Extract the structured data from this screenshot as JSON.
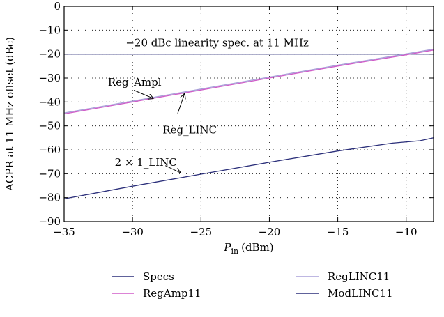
{
  "chart_data": {
    "type": "line",
    "title": "",
    "xlabel": {
      "main": "P",
      "sub": "in",
      "unit": "(dBm)"
    },
    "ylabel": "ACPR at 11 MHz offset (dBc)",
    "xlim": [
      -35,
      -8
    ],
    "ylim": [
      -90,
      0
    ],
    "xticks": [
      -35,
      -30,
      -25,
      -20,
      -15,
      -10
    ],
    "xtick_labels": [
      "−35",
      "−30",
      "−25",
      "−20",
      "−15",
      "−10"
    ],
    "yticks": [
      0,
      -10,
      -20,
      -30,
      -40,
      -50,
      -60,
      -70,
      -80,
      -90
    ],
    "ytick_labels": [
      "0",
      "−10",
      "−20",
      "−30",
      "−40",
      "−50",
      "−60",
      "−70",
      "−80",
      "−90"
    ],
    "grid": "dotted",
    "legend_position": "bottom",
    "series": [
      {
        "name": "Specs",
        "color": "#2b2f7a",
        "x": [
          -35,
          -8
        ],
        "y": [
          -20,
          -20
        ]
      },
      {
        "name": "RegAmp11",
        "color": "#d05cc8",
        "x": [
          -35,
          -30,
          -25,
          -20,
          -15,
          -10,
          -8
        ],
        "y": [
          -45,
          -40,
          -35,
          -30,
          -25,
          -20.3,
          -18.3
        ]
      },
      {
        "name": "RegLINC11",
        "color": "#a99fd8",
        "x": [
          -35,
          -30,
          -25,
          -20,
          -15,
          -10,
          -8
        ],
        "y": [
          -44.6,
          -39.6,
          -34.6,
          -29.6,
          -24.6,
          -19.9,
          -17.9
        ]
      },
      {
        "name": "ModLINC11",
        "color": "#2b2f7a",
        "x": [
          -35,
          -30,
          -25,
          -20,
          -15,
          -11,
          -9,
          -8
        ],
        "y": [
          -80.5,
          -75.2,
          -70.2,
          -65.2,
          -60.5,
          -57.2,
          -56.2,
          -55
        ]
      }
    ],
    "annotations": [
      {
        "id": "spec",
        "text": "−20 dBc linearity spec. at 11 MHz",
        "x": -30.5,
        "y": -16.8
      },
      {
        "id": "regampl",
        "text": "Reg_Ampl",
        "x": -31.8,
        "y": -33.2,
        "arrow_to": [
          -28.5,
          -38.5
        ],
        "arrow_from": [
          -29.9,
          -35.1
        ]
      },
      {
        "id": "reglinc",
        "text": "Reg_LINC",
        "x": -27.8,
        "y": -53.2,
        "arrow_to": [
          -26.2,
          -36.6
        ],
        "arrow_from": [
          -26.7,
          -44.8
        ]
      },
      {
        "id": "linc",
        "text": "2 × 1_LINC",
        "x": -31.3,
        "y": -66.7,
        "arrow_to": [
          -26.5,
          -69.6
        ],
        "arrow_from": [
          -27.6,
          -66.6
        ]
      }
    ]
  }
}
